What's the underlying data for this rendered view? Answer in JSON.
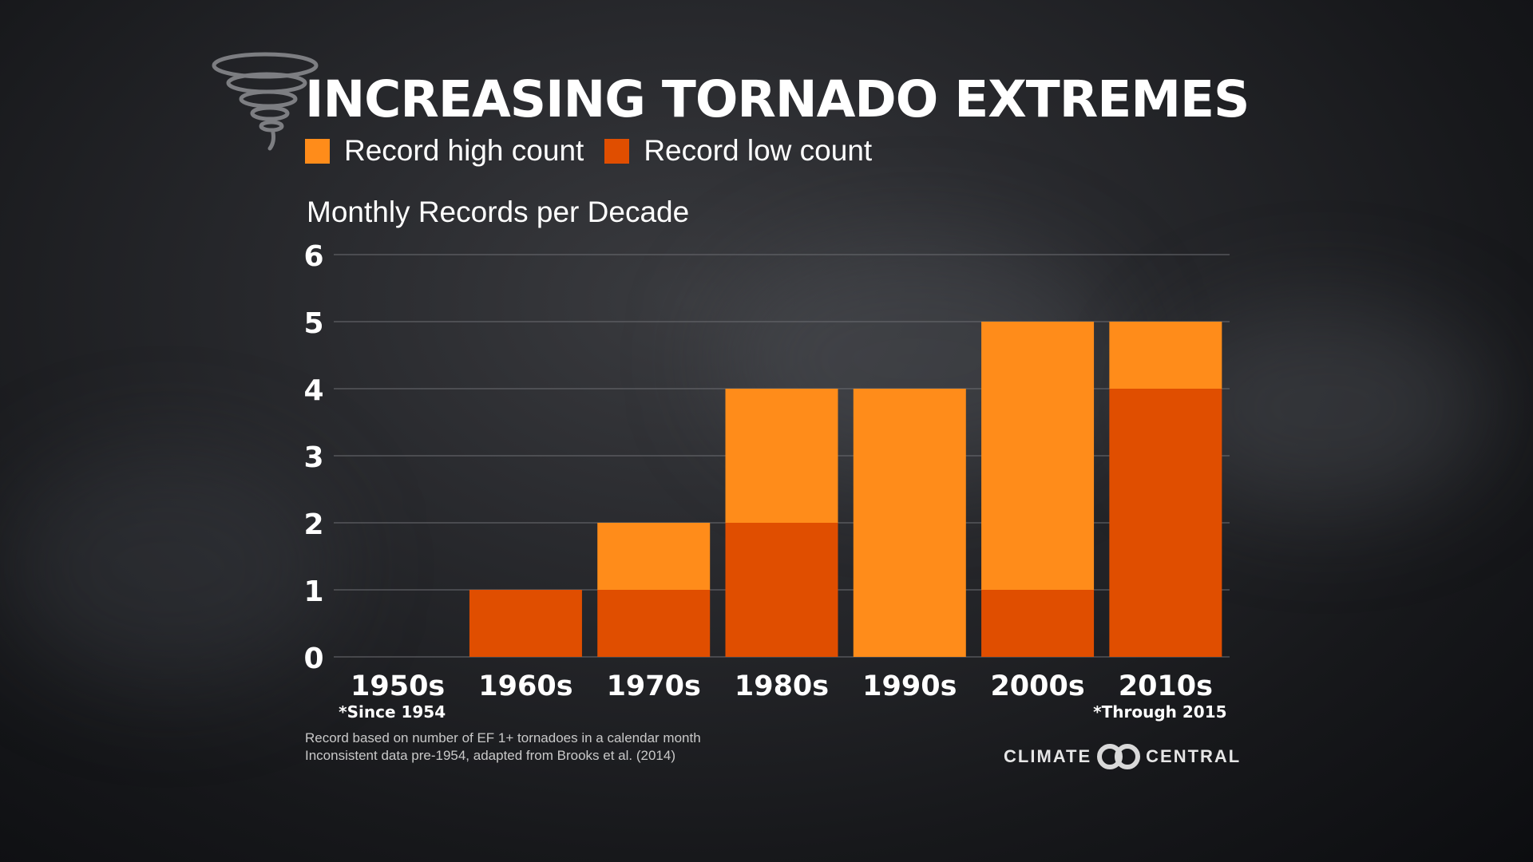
{
  "title": "INCREASING TORNADO EXTREMES",
  "legend": {
    "high_label": "Record high count",
    "low_label": "Record low count"
  },
  "colors": {
    "high": "#ff8c1a",
    "low": "#e04e00"
  },
  "footnote": {
    "line1": "Record based on number of EF 1+ tornadoes in a calendar month",
    "line2": "Inconsistent data pre-1954, adapted from Brooks et al. (2014)"
  },
  "logo": {
    "left": "CLIMATE",
    "right": "CENTRAL"
  },
  "chart_data": {
    "type": "bar",
    "stacked": true,
    "ylabel": "Monthly Records per Decade",
    "ylim": [
      0,
      6
    ],
    "yticks": [
      0,
      1,
      2,
      3,
      4,
      5,
      6
    ],
    "categories": [
      "1950s",
      "1960s",
      "1970s",
      "1980s",
      "1990s",
      "2000s",
      "2010s"
    ],
    "category_notes": [
      "*Since 1954",
      "",
      "",
      "",
      "",
      "",
      "*Through 2015"
    ],
    "series": [
      {
        "name": "Record low count",
        "values": [
          0,
          1,
          1,
          2,
          0,
          1,
          4
        ]
      },
      {
        "name": "Record high count",
        "values": [
          0,
          0,
          1,
          2,
          4,
          4,
          1
        ]
      }
    ]
  }
}
